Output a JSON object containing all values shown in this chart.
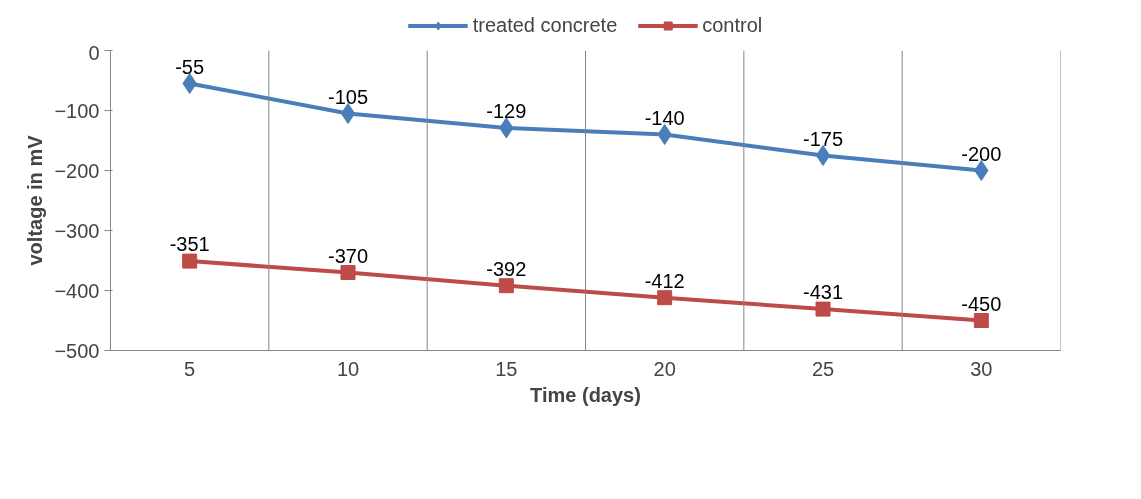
{
  "chart_data": {
    "type": "line",
    "xlabel": "Time (days)",
    "ylabel": "voltage in mV",
    "categories": [
      "5",
      "10",
      "15",
      "20",
      "25",
      "30"
    ],
    "series": [
      {
        "name": "treated concrete",
        "color": "#4a7ebb",
        "marker": "diamond",
        "values": [
          -55,
          -105,
          -129,
          -140,
          -175,
          -200
        ]
      },
      {
        "name": "control",
        "color": "#be4b48",
        "marker": "square",
        "values": [
          -351,
          -370,
          -392,
          -412,
          -431,
          -450
        ]
      }
    ],
    "ylim": [
      -500,
      0
    ],
    "yticks": [
      0,
      -100,
      -200,
      -300,
      -400,
      -500
    ],
    "grid": "x",
    "legend": "top",
    "data_labels": true,
    "line_style": "solid"
  }
}
